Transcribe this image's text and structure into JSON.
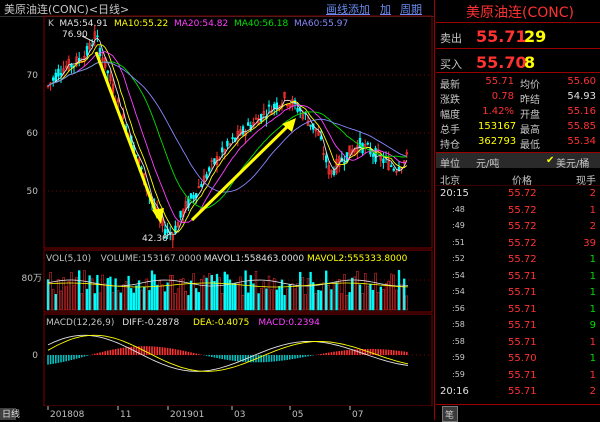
{
  "header": {
    "title": "美原油连(CONC)<日线>",
    "menu": [
      "画线添加",
      "加",
      "周期"
    ]
  },
  "price_chart": {
    "legend": [
      {
        "text": "K",
        "color": "#c0c0c0"
      },
      {
        "text": "MA5:54.91",
        "color": "#e0e0e0"
      },
      {
        "text": "MA10:55.22",
        "color": "#ffff00"
      },
      {
        "text": "MA20:54.82",
        "color": "#ff40ff"
      },
      {
        "text": "MA40:56.18",
        "color": "#00e000"
      },
      {
        "text": "MA60:55.97",
        "color": "#8888ff"
      }
    ],
    "y_ticks": [
      "70",
      "60",
      "50"
    ],
    "high_label": "76.90",
    "low_label": "42.36"
  },
  "volume_chart": {
    "legend": [
      {
        "text": "VOL(5,10)",
        "color": "#c0c0c0"
      },
      {
        "text": "VOLUME:153167.0000",
        "color": "#c0c0c0"
      },
      {
        "text": "MAVOL1:558463.0000",
        "color": "#e0e0e0"
      },
      {
        "text": "MAVOL2:555333.8000",
        "color": "#ffff00"
      }
    ],
    "y_tick": "80万"
  },
  "macd_chart": {
    "legend": [
      {
        "text": "MACD(12,26,9)",
        "color": "#c0c0c0"
      },
      {
        "text": "DIFF:-0.2878",
        "color": "#e0e0e0"
      },
      {
        "text": "DEA:-0.4075",
        "color": "#ffff00"
      },
      {
        "text": "MACD:0.2394",
        "color": "#ff40ff"
      }
    ],
    "y_tick": "0"
  },
  "x_axis": {
    "label": "日线",
    "ticks": [
      "201808",
      "11",
      "201901",
      "03",
      "05",
      "07"
    ]
  },
  "quote": {
    "name": "美原油连(CONC)",
    "sell_label": "卖出",
    "sell_price": "55.71",
    "sell_qty": "29",
    "buy_label": "买入",
    "buy_price": "55.70",
    "buy_qty": "8",
    "stats": [
      {
        "l1": "最新",
        "v1": "55.71",
        "c1": "red",
        "l2": "均价",
        "v2": "55.60",
        "c2": "red"
      },
      {
        "l1": "涨跌",
        "v1": "0.78",
        "c1": "red",
        "l2": "昨结",
        "v2": "54.93",
        "c2": "wht"
      },
      {
        "l1": "幅度",
        "v1": "1.42%",
        "c1": "red",
        "l2": "开盘",
        "v2": "55.16",
        "c2": "red"
      },
      {
        "l1": "总手",
        "v1": "153167",
        "c1": "yel",
        "l2": "最高",
        "v2": "55.85",
        "c2": "red"
      },
      {
        "l1": "持仓",
        "v1": "362793",
        "c1": "yel",
        "l2": "最低",
        "v2": "55.34",
        "c2": "red"
      }
    ],
    "unit_label": "单位",
    "unit_value": "元/吨",
    "currency": "美元/桶",
    "ticks_header": [
      "北京",
      "价格",
      "现手"
    ],
    "ticks": [
      {
        "time": "20:15",
        "price": "55.72",
        "qty": "2",
        "qc": "red"
      },
      {
        "time": ":48",
        "price": "55.72",
        "qty": "1",
        "qc": "red"
      },
      {
        "time": ":49",
        "price": "55.72",
        "qty": "2",
        "qc": "red"
      },
      {
        "time": ":51",
        "price": "55.72",
        "qty": "39",
        "qc": "red"
      },
      {
        "time": ":52",
        "price": "55.72",
        "qty": "1",
        "qc": "grn"
      },
      {
        "time": ":54",
        "price": "55.71",
        "qty": "1",
        "qc": "grn"
      },
      {
        "time": ":54",
        "price": "55.71",
        "qty": "1",
        "qc": "grn"
      },
      {
        "time": ":56",
        "price": "55.71",
        "qty": "1",
        "qc": "grn"
      },
      {
        "time": ":58",
        "price": "55.71",
        "qty": "9",
        "qc": "grn"
      },
      {
        "time": ":58",
        "price": "55.71",
        "qty": "1",
        "qc": "red"
      },
      {
        "time": ":59",
        "price": "55.70",
        "qty": "1",
        "qc": "grn"
      },
      {
        "time": ":59",
        "price": "55.71",
        "qty": "1",
        "qc": "red"
      },
      {
        "time": "20:16",
        "price": "55.71",
        "qty": "2",
        "qc": "red"
      }
    ],
    "bottom_tab": "笔"
  }
}
